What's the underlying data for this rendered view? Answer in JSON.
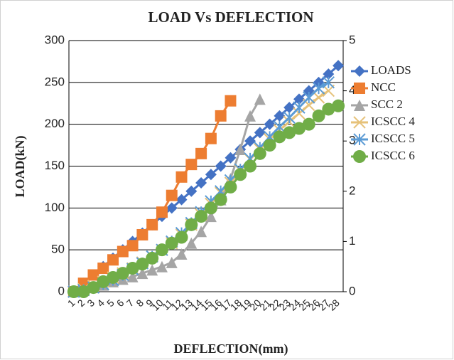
{
  "chart_data": {
    "type": "line",
    "title": "LOAD Vs DEFLECTION",
    "x_label": "DEFLECTION(mm)",
    "y_label": "LOAD(kN)",
    "categories": [
      "1",
      "2",
      "3",
      "4",
      "5",
      "6",
      "7",
      "8",
      "9",
      "10",
      "11",
      "12",
      "13",
      "14",
      "15",
      "16",
      "17",
      "18",
      "19",
      "20",
      "21",
      "22",
      "23",
      "24",
      "25",
      "26",
      "27",
      "28"
    ],
    "ylim": [
      0,
      300
    ],
    "yticks": [
      0,
      50,
      100,
      150,
      200,
      250,
      300
    ],
    "y2lim": [
      0,
      5
    ],
    "y2ticks": [
      0,
      1,
      2,
      3,
      4,
      5
    ],
    "grid": true,
    "legend": "right",
    "series": [
      {
        "name": "LOADS",
        "color": "#4472c4",
        "marker": "diamond",
        "values": [
          0,
          10,
          20,
          30,
          40,
          50,
          60,
          70,
          80,
          90,
          100,
          110,
          120,
          130,
          140,
          150,
          160,
          170,
          180,
          190,
          200,
          210,
          220,
          230,
          240,
          250,
          260,
          270
        ]
      },
      {
        "name": "NCC",
        "color": "#ed7d31",
        "marker": "square",
        "values": [
          0,
          10,
          20,
          28,
          38,
          48,
          55,
          68,
          80,
          95,
          115,
          137,
          152,
          165,
          183,
          210,
          228,
          null,
          null,
          null,
          null,
          null,
          null,
          null,
          null,
          null,
          null,
          null
        ]
      },
      {
        "name": "SCC 2",
        "color": "#a5a5a5",
        "marker": "triangle",
        "values": [
          0,
          2,
          5,
          8,
          12,
          15,
          18,
          22,
          26,
          30,
          35,
          45,
          58,
          72,
          90,
          110,
          135,
          170,
          210,
          230,
          null,
          null,
          null,
          null,
          null,
          null,
          null,
          null
        ]
      },
      {
        "name": "ICSCC 4",
        "color": "#e6c27a",
        "marker": "x",
        "values": [
          0,
          3,
          7,
          12,
          17,
          22,
          28,
          35,
          42,
          50,
          58,
          68,
          80,
          92,
          105,
          118,
          130,
          145,
          158,
          170,
          182,
          193,
          203,
          213,
          223,
          232,
          240,
          null
        ]
      },
      {
        "name": "ICSCC 5",
        "color": "#5b9bd5",
        "marker": "star",
        "values": [
          0,
          2,
          5,
          9,
          14,
          20,
          27,
          34,
          42,
          50,
          60,
          70,
          82,
          95,
          108,
          120,
          133,
          146,
          159,
          172,
          185,
          197,
          208,
          220,
          232,
          243,
          250,
          null
        ]
      },
      {
        "name": "ICSCC 6",
        "color": "#70ad47",
        "marker": "circle",
        "values": [
          0,
          0,
          5,
          12,
          17,
          22,
          28,
          33,
          40,
          50,
          58,
          65,
          80,
          90,
          100,
          110,
          125,
          140,
          150,
          165,
          175,
          185,
          190,
          195,
          200,
          210,
          218,
          222
        ]
      }
    ]
  }
}
